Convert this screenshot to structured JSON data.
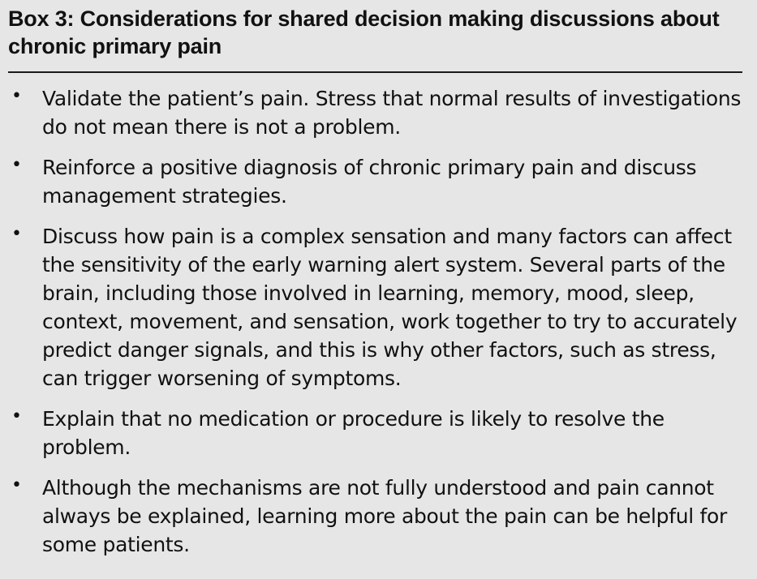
{
  "box": {
    "title": "Box 3: Considerations for shared decision making discussions about chronic primary pain",
    "bullet_glyph": "•",
    "items": [
      "Validate the patient’s pain. Stress that normal results of investigations do not mean there is not a problem.",
      "Reinforce a positive diagnosis of chronic primary pain and discuss management strategies.",
      "Discuss how pain is a complex sensation and many factors can affect the sensitivity of the early warning alert system. Several parts of the brain, including those involved in learning, memory, mood, sleep, context, movement, and sensation, work together to try to accurately predict danger signals, and this is why other factors, such as stress, can trigger worsening of symptoms.",
      "Explain that no medication or procedure is likely to resolve the problem.",
      "Although the mechanisms are not fully understood and pain cannot always be explained, learning more about the pain can be helpful for some patients."
    ]
  },
  "colors": {
    "background": "#e6e6e6",
    "text": "#111111",
    "rule": "#1a1a1a"
  }
}
